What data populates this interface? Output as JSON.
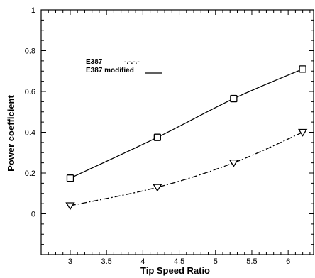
{
  "chart_data": {
    "type": "line",
    "xlabel": "Tip Speed Ratio",
    "ylabel": "Power coefficient",
    "xlim": [
      2.6,
      6.35
    ],
    "ylim": [
      -0.2,
      1.0
    ],
    "x_ticks": [
      "3",
      "3.5",
      "4",
      "4.5",
      "5",
      "5.5",
      "6"
    ],
    "x_tick_values": [
      3,
      3.5,
      4,
      4.5,
      5,
      5.5,
      6
    ],
    "y_ticks": [
      "0",
      "0.2",
      "0.4",
      "0.6",
      "0.8",
      "1"
    ],
    "y_tick_values": [
      0,
      0.2,
      0.4,
      0.6,
      0.8,
      1.0
    ],
    "grid": false,
    "legend_position": "upper-left",
    "series": [
      {
        "name": "E387",
        "legend_sample": "-.-.-.-",
        "line_style": "dash-dot",
        "marker": "triangle-down",
        "x": [
          3.0,
          4.2,
          5.25,
          6.2
        ],
        "y": [
          0.04,
          0.13,
          0.25,
          0.4
        ]
      },
      {
        "name": "E387 modified",
        "legend_sample": "",
        "line_style": "solid",
        "marker": "square",
        "x": [
          3.0,
          4.2,
          5.25,
          6.2
        ],
        "y": [
          0.175,
          0.375,
          0.565,
          0.71
        ]
      }
    ]
  }
}
